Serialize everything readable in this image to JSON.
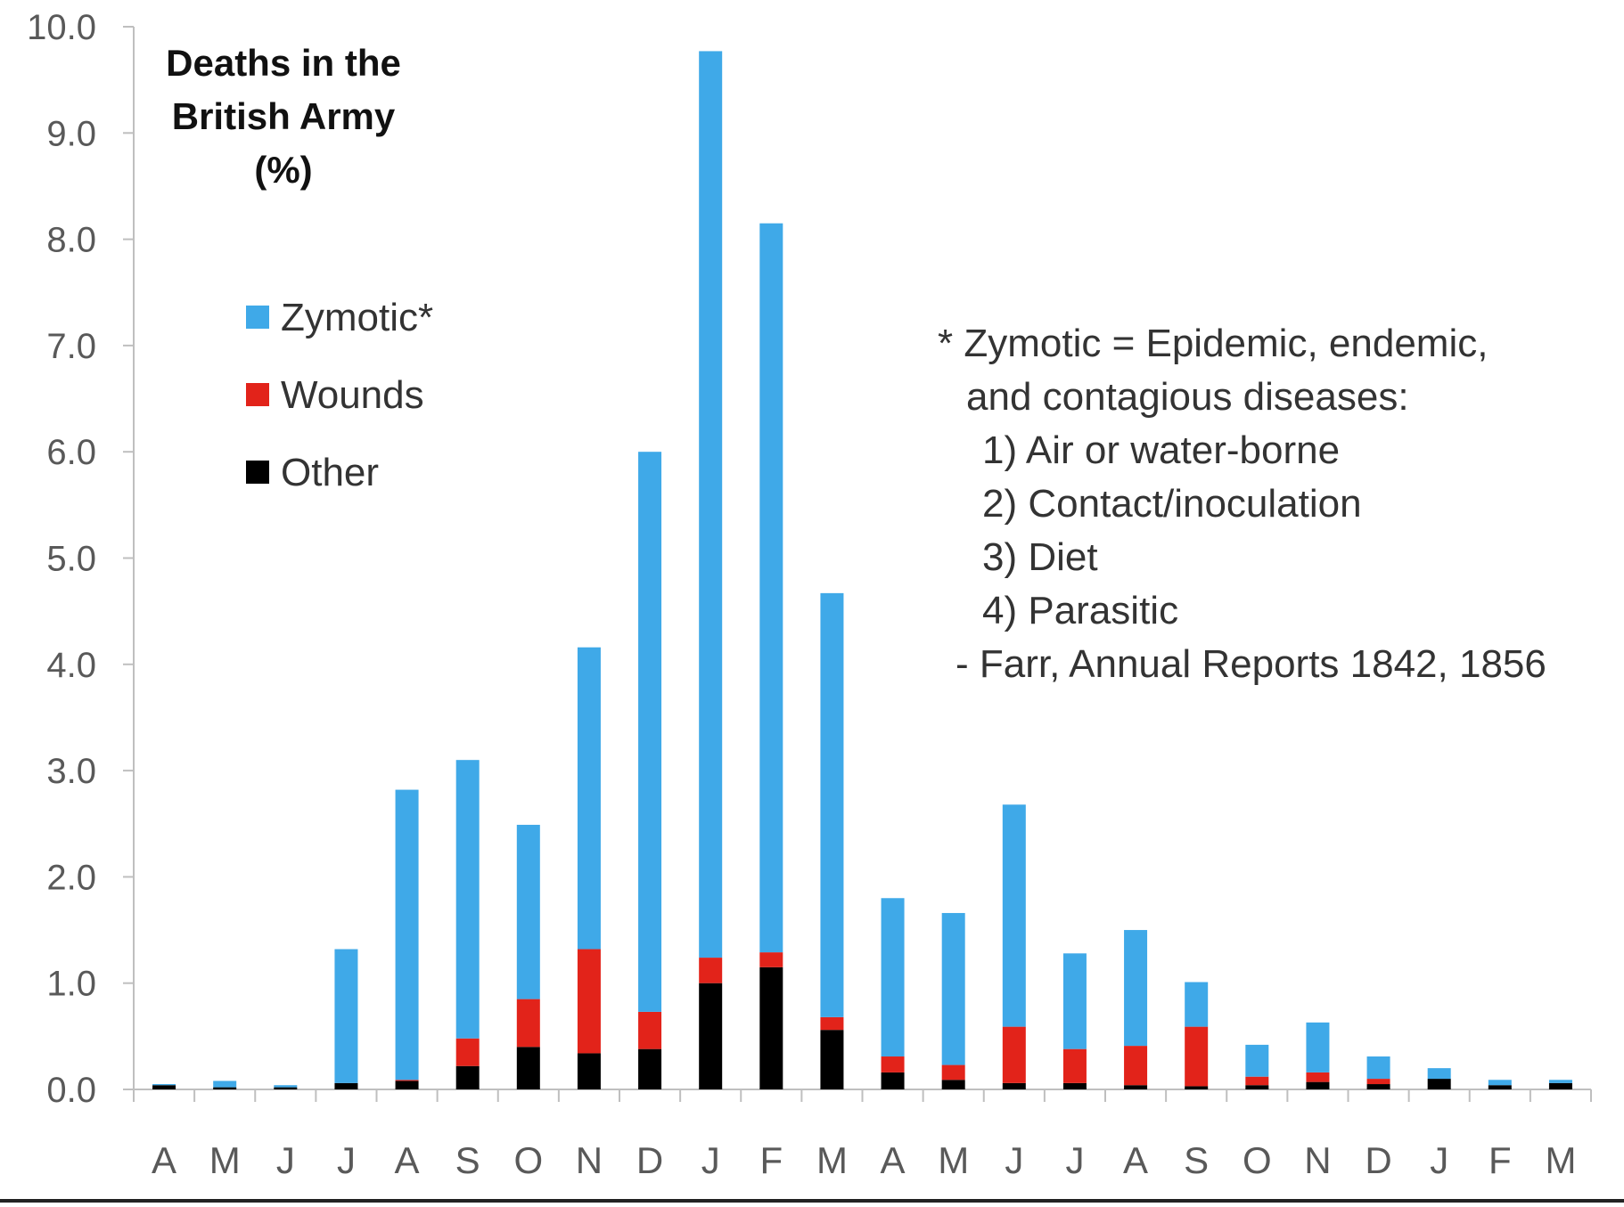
{
  "chart_data": {
    "type": "bar",
    "stacked": true,
    "title": [
      "Deaths in the",
      "British Army",
      "(%)"
    ],
    "categories": [
      "A",
      "M",
      "J",
      "J",
      "A",
      "S",
      "O",
      "N",
      "D",
      "J",
      "F",
      "M",
      "A",
      "M",
      "J",
      "J",
      "A",
      "S",
      "O",
      "N",
      "D",
      "J",
      "F",
      "M"
    ],
    "ylim": [
      0,
      10
    ],
    "yticks": [
      "0.0",
      "1.0",
      "2.0",
      "3.0",
      "4.0",
      "5.0",
      "6.0",
      "7.0",
      "8.0",
      "9.0",
      "10.0"
    ],
    "series": [
      {
        "name": "Other",
        "legend_label": "Other",
        "color": "#000000",
        "values": [
          0.04,
          0.02,
          0.02,
          0.06,
          0.08,
          0.22,
          0.4,
          0.34,
          0.38,
          1.0,
          1.15,
          0.56,
          0.16,
          0.09,
          0.06,
          0.06,
          0.04,
          0.03,
          0.04,
          0.07,
          0.05,
          0.1,
          0.04,
          0.06
        ]
      },
      {
        "name": "Wounds",
        "legend_label": "Wounds",
        "color": "#e2231a",
        "values": [
          0.0,
          0.0,
          0.0,
          0.0,
          0.01,
          0.26,
          0.45,
          0.98,
          0.35,
          0.24,
          0.14,
          0.12,
          0.15,
          0.14,
          0.53,
          0.32,
          0.37,
          0.56,
          0.08,
          0.09,
          0.05,
          0.0,
          0.0,
          0.0
        ]
      },
      {
        "name": "Zymotic",
        "legend_label": "Zymotic*",
        "color": "#3fa9e8",
        "values": [
          0.01,
          0.06,
          0.02,
          1.26,
          2.73,
          2.62,
          1.64,
          2.84,
          5.27,
          8.53,
          6.86,
          3.99,
          1.49,
          1.43,
          2.09,
          0.9,
          1.09,
          0.42,
          0.3,
          0.47,
          0.21,
          0.1,
          0.05,
          0.03
        ]
      }
    ],
    "note": [
      "* Zymotic = Epidemic, endemic,",
      "and contagious diseases:",
      "1) Air or water-borne",
      "2) Contact/inoculation",
      "3) Diet",
      "4) Parasitic",
      "- Farr, Annual Reports 1842, 1856"
    ]
  }
}
